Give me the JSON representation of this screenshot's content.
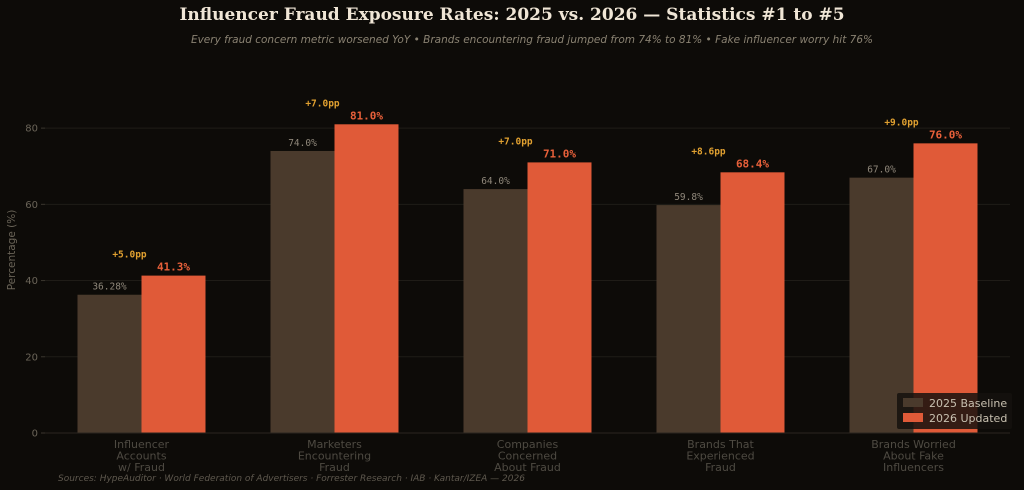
{
  "chart_data": {
    "type": "bar",
    "title": "Influencer Fraud Exposure Rates: 2025 vs. 2026 — Statistics #1 to #5",
    "subtitle": "Every fraud concern metric worsened YoY  •  Brands encountering fraud jumped from 74% to 81%  •  Fake influencer worry hit 76%",
    "ylabel": "Percentage (%)",
    "xlabel": "",
    "ylim": [
      0,
      90
    ],
    "yticks": [
      0,
      20,
      40,
      60,
      80
    ],
    "grid": true,
    "legend_position": "bottom-right",
    "categories": [
      [
        "Influencer",
        "Accounts",
        "w/ Fraud"
      ],
      [
        "Marketers",
        "Encountering",
        "Fraud"
      ],
      [
        "Companies",
        "Concerned",
        "About Fraud"
      ],
      [
        "Brands That",
        "Experienced",
        "Fraud"
      ],
      [
        "Brands Worried",
        "About Fake",
        "Influencers"
      ]
    ],
    "series": [
      {
        "name": "2025 Baseline",
        "color": "#4a3a2c",
        "values": [
          36.28,
          74.0,
          64.0,
          59.8,
          67.0
        ],
        "labels": [
          "36.28%",
          "74.0%",
          "64.0%",
          "59.8%",
          "67.0%"
        ]
      },
      {
        "name": "2026 Updated",
        "color": "#e05a38",
        "values": [
          41.3,
          81.0,
          71.0,
          68.4,
          76.0
        ],
        "labels": [
          "41.3%",
          "81.0%",
          "71.0%",
          "68.4%",
          "76.0%"
        ]
      }
    ],
    "deltas": [
      "+5.0pp",
      "+7.0pp",
      "+7.0pp",
      "+8.6pp",
      "+9.0pp"
    ],
    "source": "Sources: HypeAuditor · World Federation of Advertisers · Forrester Research · IAB · Kantar/IZEA — 2026"
  }
}
